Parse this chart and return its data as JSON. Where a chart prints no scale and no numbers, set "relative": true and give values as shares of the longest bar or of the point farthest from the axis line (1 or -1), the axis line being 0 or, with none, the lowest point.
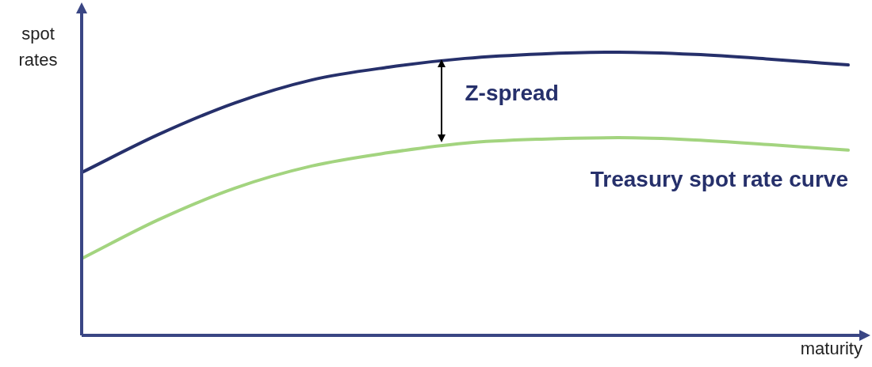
{
  "chart_data": {
    "type": "line",
    "relative": true,
    "xlabel": "maturity",
    "ylabel": "spot rates",
    "annotations": [
      "Z-spread"
    ],
    "categories": [
      null,
      null,
      null,
      null,
      null,
      null,
      null,
      null,
      null,
      null,
      null
    ],
    "marker": "none",
    "line_style": "solid",
    "legend": false,
    "series": [
      {
        "color": "#26306b",
        "values": [
          0.575,
          0.709,
          0.821,
          0.902,
          0.947,
          0.978,
          0.994,
          1.0,
          0.992,
          0.975,
          0.955
        ]
      },
      {
        "name": "Treasury spot rate curve",
        "color": "#a3d47f",
        "values": [
          0.271,
          0.408,
          0.52,
          0.598,
          0.645,
          0.679,
          0.693,
          0.698,
          0.69,
          0.673,
          0.654
        ]
      }
    ]
  }
}
